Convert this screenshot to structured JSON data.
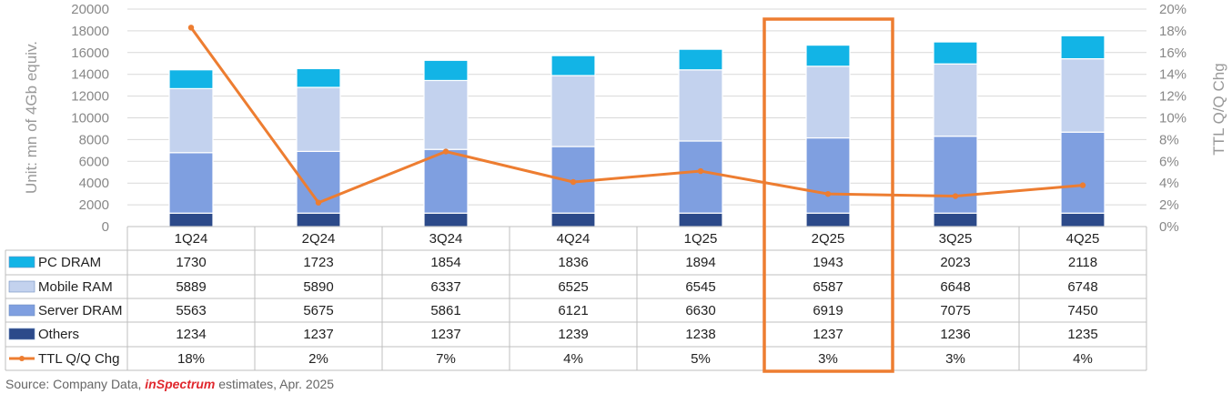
{
  "source": {
    "prefix": "Source: Company Data, ",
    "brand_in": "in",
    "brand_rest": "Spectrum",
    "suffix": " estimates, Apr. 2025"
  },
  "colors": {
    "pc": "#12b4e6",
    "mobile": "#c3d2ee",
    "server": "#7f9fe0",
    "others": "#2c4a8a",
    "line": "#ed7d31",
    "highlight": "#ed7d31"
  },
  "chart_data": {
    "type": "bar",
    "stacked": true,
    "categories": [
      "1Q24",
      "2Q24",
      "3Q24",
      "4Q24",
      "1Q25",
      "2Q25",
      "3Q25",
      "4Q25"
    ],
    "series": [
      {
        "name": "PC DRAM",
        "values": [
          1730,
          1723,
          1854,
          1836,
          1894,
          1943,
          2023,
          2118
        ]
      },
      {
        "name": "Mobile RAM",
        "values": [
          5889,
          5890,
          6337,
          6525,
          6545,
          6587,
          6648,
          6748
        ]
      },
      {
        "name": "Server DRAM",
        "values": [
          5563,
          5675,
          5861,
          6121,
          6630,
          6919,
          7075,
          7450
        ]
      },
      {
        "name": "Others",
        "values": [
          1234,
          1237,
          1237,
          1239,
          1238,
          1237,
          1236,
          1235
        ]
      }
    ],
    "line_series": {
      "name": "TTL Q/Q Chg",
      "values": [
        18.3,
        2.2,
        6.9,
        4.1,
        5.1,
        3.0,
        2.8,
        3.8
      ],
      "labels": [
        "18%",
        "2%",
        "7%",
        "4%",
        "5%",
        "3%",
        "3%",
        "4%"
      ]
    },
    "ylabel": "Unit: mn of 4Gb equiv.",
    "y2label": "TTL Q/Q Chg",
    "ylim": [
      0,
      20000
    ],
    "y_ticks": [
      "0",
      "2000",
      "4000",
      "6000",
      "8000",
      "10000",
      "12000",
      "14000",
      "16000",
      "18000",
      "20000"
    ],
    "y2lim": [
      0,
      20
    ],
    "y2_ticks": [
      "0%",
      "2%",
      "4%",
      "6%",
      "8%",
      "10%",
      "12%",
      "14%",
      "16%",
      "18%",
      "20%"
    ],
    "highlight_category": "2Q25",
    "grid": true,
    "legend": "data-table"
  }
}
